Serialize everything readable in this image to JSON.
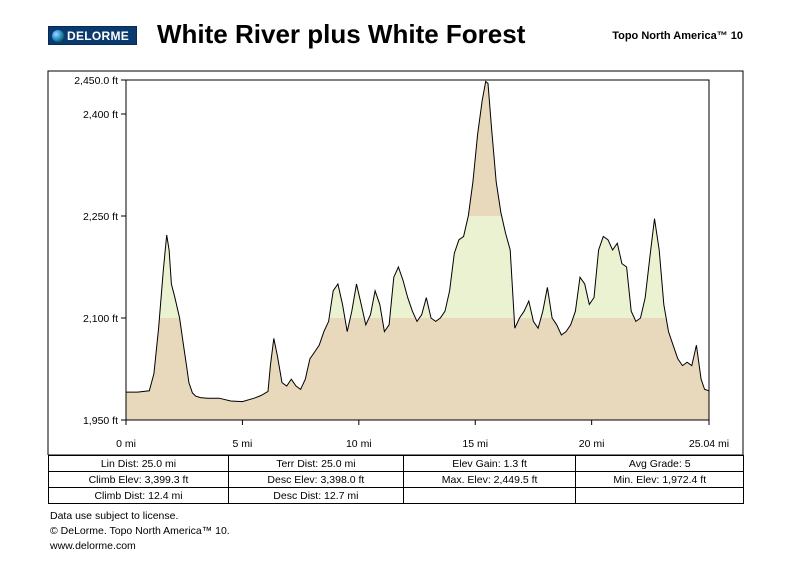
{
  "header": {
    "logo_text": "DELORME",
    "title": "White River plus White Forest",
    "product": "Topo North America™ 10"
  },
  "chart_data": {
    "type": "area",
    "title": "White River plus White Forest",
    "xlabel": "",
    "ylabel": "",
    "x_unit": "mi",
    "y_unit": "ft",
    "xlim": [
      0,
      25.04
    ],
    "ylim": [
      1950,
      2450
    ],
    "x_ticks": [
      "0 mi",
      "5 mi",
      "10 mi",
      "15 mi",
      "20 mi",
      "25.04 mi"
    ],
    "x_tick_values": [
      0,
      5,
      10,
      15,
      20,
      25.04
    ],
    "y_ticks": [
      "1,950 ft",
      "2,100 ft",
      "2,250 ft",
      "2,400 ft",
      "2,450.0 ft"
    ],
    "y_tick_values": [
      1950,
      2100,
      2250,
      2400,
      2450
    ],
    "bands": [
      {
        "from": 1950,
        "to": 2100,
        "color": "#e8d8bc"
      },
      {
        "from": 2100,
        "to": 2250,
        "color": "#eaf2d2"
      },
      {
        "from": 2250,
        "to": 2450,
        "color": "#e8d8bc"
      }
    ],
    "series": [
      {
        "x": [
          0,
          0.5,
          1.0,
          1.2,
          1.4,
          1.6,
          1.75,
          1.85,
          1.95,
          2.1,
          2.3,
          2.45,
          2.6,
          2.7,
          2.85,
          3.0,
          3.2,
          3.5,
          4.0,
          4.5,
          5.0,
          5.5,
          5.8,
          6.1,
          6.2,
          6.35,
          6.5,
          6.7,
          6.9,
          7.1,
          7.3,
          7.5,
          7.7,
          7.9,
          8.1,
          8.3,
          8.5,
          8.7,
          8.9,
          9.1,
          9.3,
          9.5,
          9.7,
          9.9,
          10.1,
          10.3,
          10.5,
          10.7,
          10.9,
          11.1,
          11.3,
          11.5,
          11.7,
          11.9,
          12.1,
          12.3,
          12.5,
          12.7,
          12.9,
          13.1,
          13.3,
          13.5,
          13.7,
          13.9,
          14.1,
          14.3,
          14.5,
          14.7,
          14.9,
          15.1,
          15.3,
          15.45,
          15.55,
          15.7,
          15.9,
          16.1,
          16.3,
          16.5,
          16.7,
          16.9,
          17.1,
          17.3,
          17.5,
          17.7,
          17.9,
          18.1,
          18.3,
          18.5,
          18.7,
          18.9,
          19.1,
          19.3,
          19.5,
          19.7,
          19.9,
          20.1,
          20.3,
          20.5,
          20.7,
          20.9,
          21.1,
          21.3,
          21.5,
          21.7,
          21.9,
          22.1,
          22.3,
          22.5,
          22.7,
          22.9,
          23.1,
          23.3,
          23.5,
          23.7,
          23.9,
          24.1,
          24.3,
          24.5,
          24.7,
          24.85,
          25.04
        ],
        "y": [
          1991,
          1991,
          1993,
          2018,
          2085,
          2170,
          2222,
          2200,
          2150,
          2130,
          2100,
          2065,
          2030,
          2005,
          1990,
          1985,
          1983,
          1982,
          1982,
          1978,
          1977,
          1982,
          1986,
          1992,
          2030,
          2070,
          2045,
          2005,
          2000,
          2010,
          2000,
          1995,
          2010,
          2040,
          2050,
          2060,
          2080,
          2095,
          2140,
          2150,
          2120,
          2080,
          2110,
          2150,
          2120,
          2090,
          2105,
          2140,
          2120,
          2080,
          2090,
          2160,
          2175,
          2155,
          2130,
          2110,
          2095,
          2105,
          2130,
          2100,
          2095,
          2100,
          2110,
          2140,
          2195,
          2215,
          2220,
          2250,
          2300,
          2370,
          2420,
          2448,
          2445,
          2380,
          2300,
          2255,
          2225,
          2200,
          2085,
          2100,
          2110,
          2125,
          2095,
          2085,
          2110,
          2145,
          2100,
          2090,
          2075,
          2080,
          2090,
          2110,
          2160,
          2150,
          2120,
          2130,
          2200,
          2220,
          2215,
          2200,
          2210,
          2180,
          2175,
          2110,
          2095,
          2100,
          2130,
          2190,
          2246,
          2200,
          2120,
          2080,
          2060,
          2040,
          2030,
          2035,
          2030,
          2060,
          2010,
          1995,
          1993
        ]
      }
    ],
    "grid": false,
    "legend": "none"
  },
  "stats": {
    "rows": [
      [
        "Lin Dist:  25.0 mi",
        "Terr Dist:  25.0 mi",
        "Elev Gain:  1.3 ft",
        "Avg Grade:  5"
      ],
      [
        "Climb Elev:  3,399.3 ft",
        "Desc Elev:  3,398.0 ft",
        "Max. Elev:  2,449.5 ft",
        "Min. Elev:  1,972.4 ft"
      ],
      [
        "Climb Dist:  12.4 mi",
        "Desc Dist:  12.7 mi",
        "",
        ""
      ]
    ]
  },
  "footer": {
    "line1": "Data use subject to license.",
    "line2": "© DeLorme. Topo North America™ 10.",
    "line3": "www.delorme.com"
  }
}
